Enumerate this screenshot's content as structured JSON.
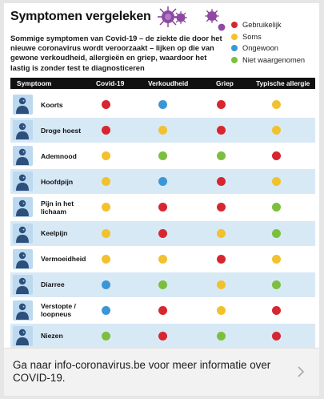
{
  "graphic": {
    "title": "Symptomen vergeleken",
    "intro": "Sommige symptomen van Covid-19 – de ziekte die door het nieuwe coronavirus wordt veroorzaakt – lijken op die van gewone verkoudheid, allergieën en griep, waardoor het lastig is zonder test te diagnosticeren",
    "legend": [
      {
        "label": "Gebruikelijk",
        "color": "#d7262f"
      },
      {
        "label": "Soms",
        "color": "#f2c12e"
      },
      {
        "label": "Ongewoon",
        "color": "#3b96d6"
      },
      {
        "label": "Niet waargenomen",
        "color": "#7cbf3f"
      }
    ],
    "columns": [
      "Symptoom",
      "Covid-19",
      "Verkoudheid",
      "Griep",
      "Typische allergie"
    ],
    "rows": [
      {
        "symptom": "Koorts",
        "icon": "thermometer-person-icon",
        "levels": [
          "Gebruikelijk",
          "Ongewoon",
          "Gebruikelijk",
          "Soms"
        ]
      },
      {
        "symptom": "Droge hoest",
        "icon": "coughing-person-icon",
        "levels": [
          "Gebruikelijk",
          "Soms",
          "Gebruikelijk",
          "Soms"
        ]
      },
      {
        "symptom": "Ademnood",
        "icon": "lungs-person-icon",
        "levels": [
          "Soms",
          "Niet waargenomen",
          "Niet waargenomen",
          "Gebruikelijk"
        ]
      },
      {
        "symptom": "Hoofdpijn",
        "icon": "headache-person-icon",
        "levels": [
          "Soms",
          "Ongewoon",
          "Gebruikelijk",
          "Soms"
        ]
      },
      {
        "symptom": "Pijn in het lichaam",
        "icon": "body-pain-person-icon",
        "levels": [
          "Soms",
          "Gebruikelijk",
          "Gebruikelijk",
          "Niet waargenomen"
        ]
      },
      {
        "symptom": "Keelpijn",
        "icon": "sore-throat-person-icon",
        "levels": [
          "Soms",
          "Gebruikelijk",
          "Soms",
          "Niet waargenomen"
        ]
      },
      {
        "symptom": "Vermoeidheid",
        "icon": "tired-person-icon",
        "levels": [
          "Soms",
          "Soms",
          "Gebruikelijk",
          "Soms"
        ]
      },
      {
        "symptom": "Diarree",
        "icon": "stomach-person-icon",
        "levels": [
          "Ongewoon",
          "Niet waargenomen",
          "Soms",
          "Niet waargenomen"
        ]
      },
      {
        "symptom": "Verstopte / loopneus",
        "icon": "runny-nose-person-icon",
        "levels": [
          "Ongewoon",
          "Gebruikelijk",
          "Soms",
          "Gebruikelijk"
        ]
      },
      {
        "symptom": "Niezen",
        "icon": "sneezing-person-icon",
        "levels": [
          "Niet waargenomen",
          "Gebruikelijk",
          "Niet waargenomen",
          "Gebruikelijk"
        ]
      }
    ]
  },
  "link": {
    "text": "Ga naar info-coronavirus.be voor meer informatie over COVID-19.",
    "chevron_icon": "chevron-right-icon"
  }
}
